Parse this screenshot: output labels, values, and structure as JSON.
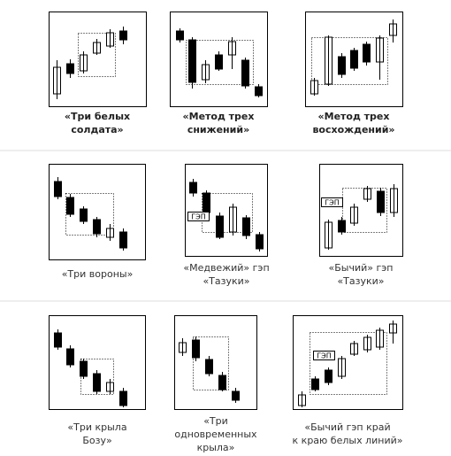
{
  "patterns": [
    {
      "caption": [
        "«Три белых",
        "солдата»"
      ]
    },
    {
      "caption": [
        "«Метод трех",
        "снижений»"
      ]
    },
    {
      "caption": [
        "«Метод трех",
        "восхождений»"
      ]
    },
    {
      "caption": [
        "«Три вороны»"
      ]
    },
    {
      "caption": [
        "«Медвежий» гэп",
        "«Тазуки»"
      ],
      "gap_label": "ГЭП"
    },
    {
      "caption": [
        "«Бычий» гэп",
        "«Тазуки»"
      ],
      "gap_label": "ГЭП"
    },
    {
      "caption": [
        "«Три крыла",
        "Бозу»"
      ]
    },
    {
      "caption": [
        "«Три",
        "одновременных",
        "крыла»"
      ]
    },
    {
      "caption": [
        "«Бычий гэп край",
        "к краю белых линий»"
      ],
      "gap_label": "ГЭП"
    }
  ]
}
